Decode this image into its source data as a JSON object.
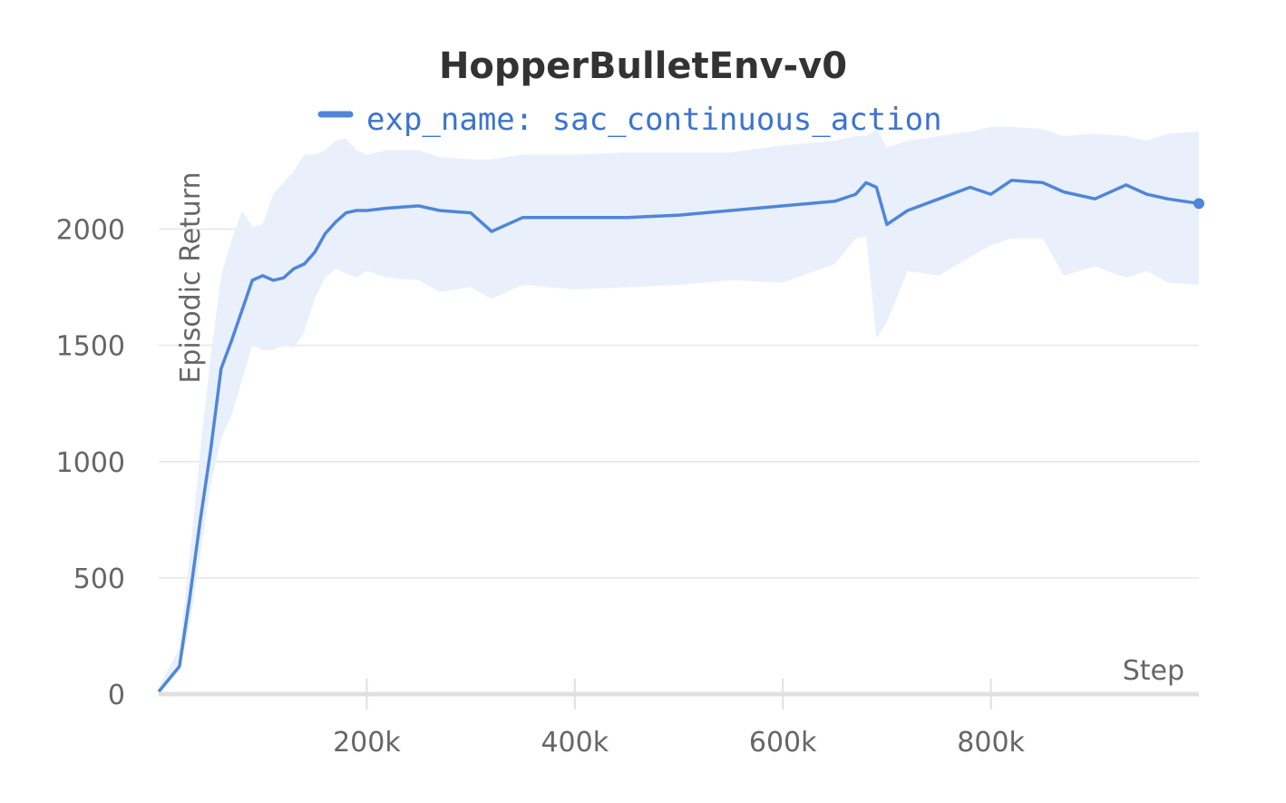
{
  "chart_data": {
    "type": "line",
    "title": "HopperBulletEnv-v0",
    "xlabel": "Step",
    "ylabel": "Episodic Return",
    "xlim": [
      0,
      1000000
    ],
    "ylim": [
      0,
      2400
    ],
    "x_ticks": [
      200000,
      400000,
      600000,
      800000
    ],
    "x_tick_labels": [
      "200k",
      "400k",
      "600k",
      "800k"
    ],
    "y_ticks": [
      0,
      500,
      1000,
      1500,
      2000
    ],
    "y_tick_labels": [
      "0",
      "500",
      "1000",
      "1500",
      "2000"
    ],
    "grid": "horizontal",
    "legend_position": "top",
    "colors": {
      "line": "#4f86d9",
      "band": "#e9f0fb",
      "grid": "#e6e6e6",
      "axis": "#e0e0e0"
    },
    "series": [
      {
        "name": "exp_name: sac_continuous_action",
        "x": [
          0,
          20000,
          30000,
          40000,
          50000,
          60000,
          70000,
          80000,
          90000,
          100000,
          110000,
          120000,
          130000,
          140000,
          150000,
          160000,
          170000,
          180000,
          190000,
          200000,
          220000,
          250000,
          270000,
          300000,
          320000,
          350000,
          400000,
          450000,
          500000,
          550000,
          600000,
          650000,
          670000,
          680000,
          690000,
          700000,
          720000,
          750000,
          780000,
          800000,
          820000,
          850000,
          870000,
          900000,
          930000,
          950000,
          970000,
          1000000
        ],
        "y": [
          10,
          120,
          420,
          750,
          1050,
          1400,
          1520,
          1650,
          1780,
          1800,
          1780,
          1790,
          1830,
          1850,
          1900,
          1980,
          2030,
          2070,
          2080,
          2080,
          2090,
          2100,
          2080,
          2070,
          1990,
          2050,
          2050,
          2050,
          2060,
          2080,
          2100,
          2120,
          2150,
          2200,
          2180,
          2020,
          2080,
          2130,
          2180,
          2150,
          2210,
          2200,
          2160,
          2130,
          2190,
          2150,
          2130,
          2110
        ],
        "band_upper": [
          30,
          200,
          600,
          1050,
          1450,
          1800,
          1950,
          2080,
          2010,
          2020,
          2150,
          2200,
          2250,
          2320,
          2320,
          2340,
          2380,
          2390,
          2340,
          2320,
          2340,
          2340,
          2310,
          2300,
          2300,
          2320,
          2320,
          2330,
          2330,
          2330,
          2360,
          2380,
          2400,
          2400,
          2430,
          2350,
          2380,
          2400,
          2420,
          2440,
          2440,
          2430,
          2400,
          2410,
          2400,
          2380,
          2410,
          2420
        ],
        "band_lower": [
          0,
          100,
          300,
          600,
          900,
          1100,
          1200,
          1350,
          1500,
          1480,
          1480,
          1500,
          1490,
          1560,
          1700,
          1790,
          1830,
          1810,
          1790,
          1820,
          1790,
          1780,
          1730,
          1750,
          1700,
          1760,
          1740,
          1750,
          1760,
          1780,
          1770,
          1850,
          1960,
          1970,
          1530,
          1600,
          1820,
          1800,
          1880,
          1930,
          1960,
          1960,
          1800,
          1840,
          1790,
          1820,
          1770,
          1760
        ]
      }
    ]
  }
}
